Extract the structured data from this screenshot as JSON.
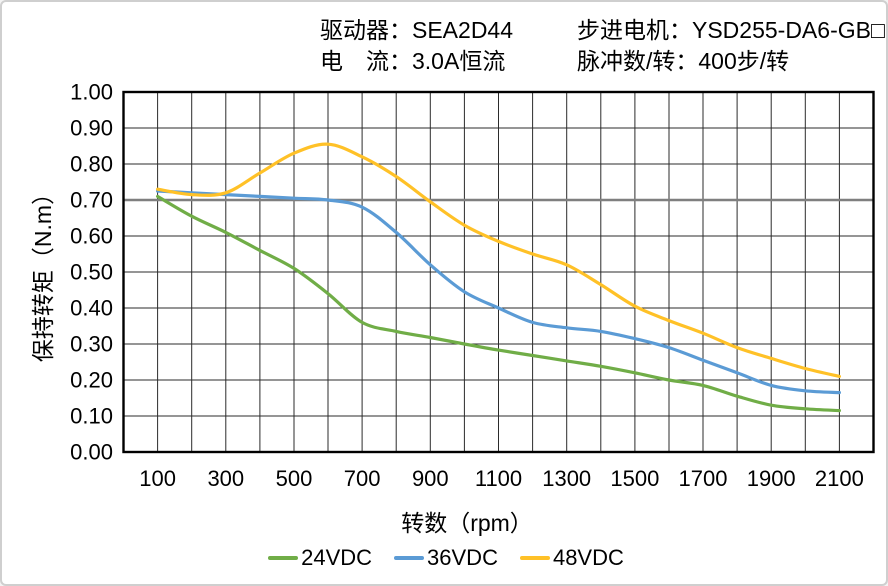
{
  "header": {
    "driver_line": "驱动器：SEA2D44",
    "current_line": "电　流：3.0A恒流",
    "motor_line": "步进电机：YSD255-DA6-GB□",
    "pulses_line": "脉冲数/转：400步/转"
  },
  "chart_data": {
    "type": "line",
    "title": "",
    "xlabel": "转数（rpm）",
    "ylabel": "保持转矩（N.m）",
    "xlim": [
      0,
      2200
    ],
    "ylim": [
      0,
      1.0
    ],
    "grid": {
      "x_step": 100,
      "y_step": 0.1,
      "emphasized_y_gridline": 0.7
    },
    "x_ticks": [
      100,
      300,
      500,
      700,
      900,
      1100,
      1300,
      1500,
      1700,
      1900,
      2100
    ],
    "y_ticks": [
      1.0,
      0.9,
      0.8,
      0.7,
      0.6,
      0.5,
      0.4,
      0.3,
      0.2,
      0.1,
      0.0
    ],
    "y_tick_decimals": 2,
    "legend_position": "bottom",
    "x": [
      100,
      200,
      300,
      400,
      500,
      600,
      700,
      800,
      900,
      1000,
      1100,
      1200,
      1300,
      1400,
      1500,
      1600,
      1700,
      1800,
      1900,
      2000,
      2100
    ],
    "series": [
      {
        "name": "24VDC",
        "color": "#70AD47",
        "values": [
          0.71,
          0.655,
          0.61,
          0.56,
          0.51,
          0.44,
          0.36,
          0.335,
          0.318,
          0.3,
          0.283,
          0.268,
          0.253,
          0.238,
          0.22,
          0.2,
          0.185,
          0.155,
          0.13,
          0.12,
          0.115
        ]
      },
      {
        "name": "36VDC",
        "color": "#5B9BD5",
        "values": [
          0.725,
          0.72,
          0.715,
          0.71,
          0.705,
          0.7,
          0.68,
          0.61,
          0.52,
          0.445,
          0.4,
          0.36,
          0.345,
          0.335,
          0.315,
          0.29,
          0.255,
          0.22,
          0.185,
          0.17,
          0.165
        ]
      },
      {
        "name": "48VDC",
        "color": "#FFC127",
        "values": [
          0.73,
          0.715,
          0.72,
          0.775,
          0.83,
          0.855,
          0.82,
          0.765,
          0.695,
          0.63,
          0.585,
          0.55,
          0.52,
          0.465,
          0.405,
          0.365,
          0.33,
          0.29,
          0.26,
          0.232,
          0.21
        ]
      }
    ]
  }
}
